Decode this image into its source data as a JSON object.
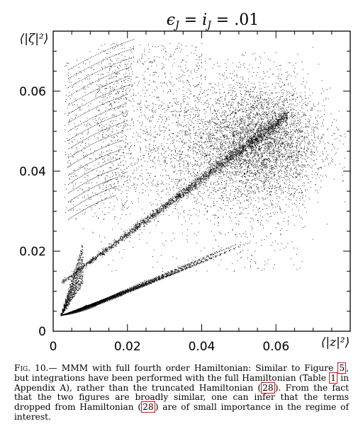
{
  "chart_data": {
    "type": "scatter",
    "title": "ϵJ = iJ = .01",
    "title_parts": {
      "eps": "ϵ",
      "i": "i",
      "sub": "J",
      "value": ".01"
    },
    "xlabel": "⟨|z|²⟩",
    "ylabel": "⟨|ζ|²⟩",
    "xlim": [
      0,
      0.08
    ],
    "ylim": [
      0,
      0.075
    ],
    "xticks": [
      0,
      0.02,
      0.04,
      0.06
    ],
    "xtick_labels": [
      "0",
      "0.02",
      "0.04",
      "0.06"
    ],
    "yticks": [
      0,
      0.02,
      0.04,
      0.06
    ],
    "ytick_labels": [
      "0",
      "0.02",
      "0.04",
      "0.06"
    ],
    "grid": false,
    "point_color": "#000000",
    "regions": [
      {
        "description": "dense cloud",
        "center": [
          0.055,
          0.047
        ],
        "spread": [
          0.009,
          0.007
        ]
      },
      {
        "description": "broad diffuse cloud",
        "x_range": [
          0.005,
          0.068
        ],
        "y_range": [
          0.014,
          0.072
        ]
      },
      {
        "description": "diagonal band",
        "from": [
          0.002,
          0.012
        ],
        "to": [
          0.063,
          0.054
        ]
      },
      {
        "description": "upper-left fan of curves",
        "x_range": [
          0.003,
          0.021
        ],
        "y_range": [
          0.027,
          0.07
        ]
      },
      {
        "description": "lower fan of lines",
        "origin": [
          0.002,
          0.004
        ],
        "x_max": 0.052,
        "y_range": [
          0.004,
          0.022
        ]
      }
    ]
  },
  "caption": {
    "fig_label": "Fig. 10.",
    "dash": "—",
    "part1": " MMM with full fourth order Hamiltonian: Similar to Figure ",
    "ref_fig": "5",
    "part2": ", but integrations have been performed with the full Hamiltonian (Table ",
    "ref_table": "1",
    "part3": " in Appendix A), rather than the truncated Hamiltonian (",
    "ref_eq1": "28",
    "part4": "). From the fact that the two figures are broadly similar, one can infer that the terms dropped from Hamiltonian (",
    "ref_eq2": "28",
    "part5": ") are of small importance in the regime of interest."
  },
  "colors": {
    "reference_box": "#e01010",
    "axes": "#000000"
  }
}
